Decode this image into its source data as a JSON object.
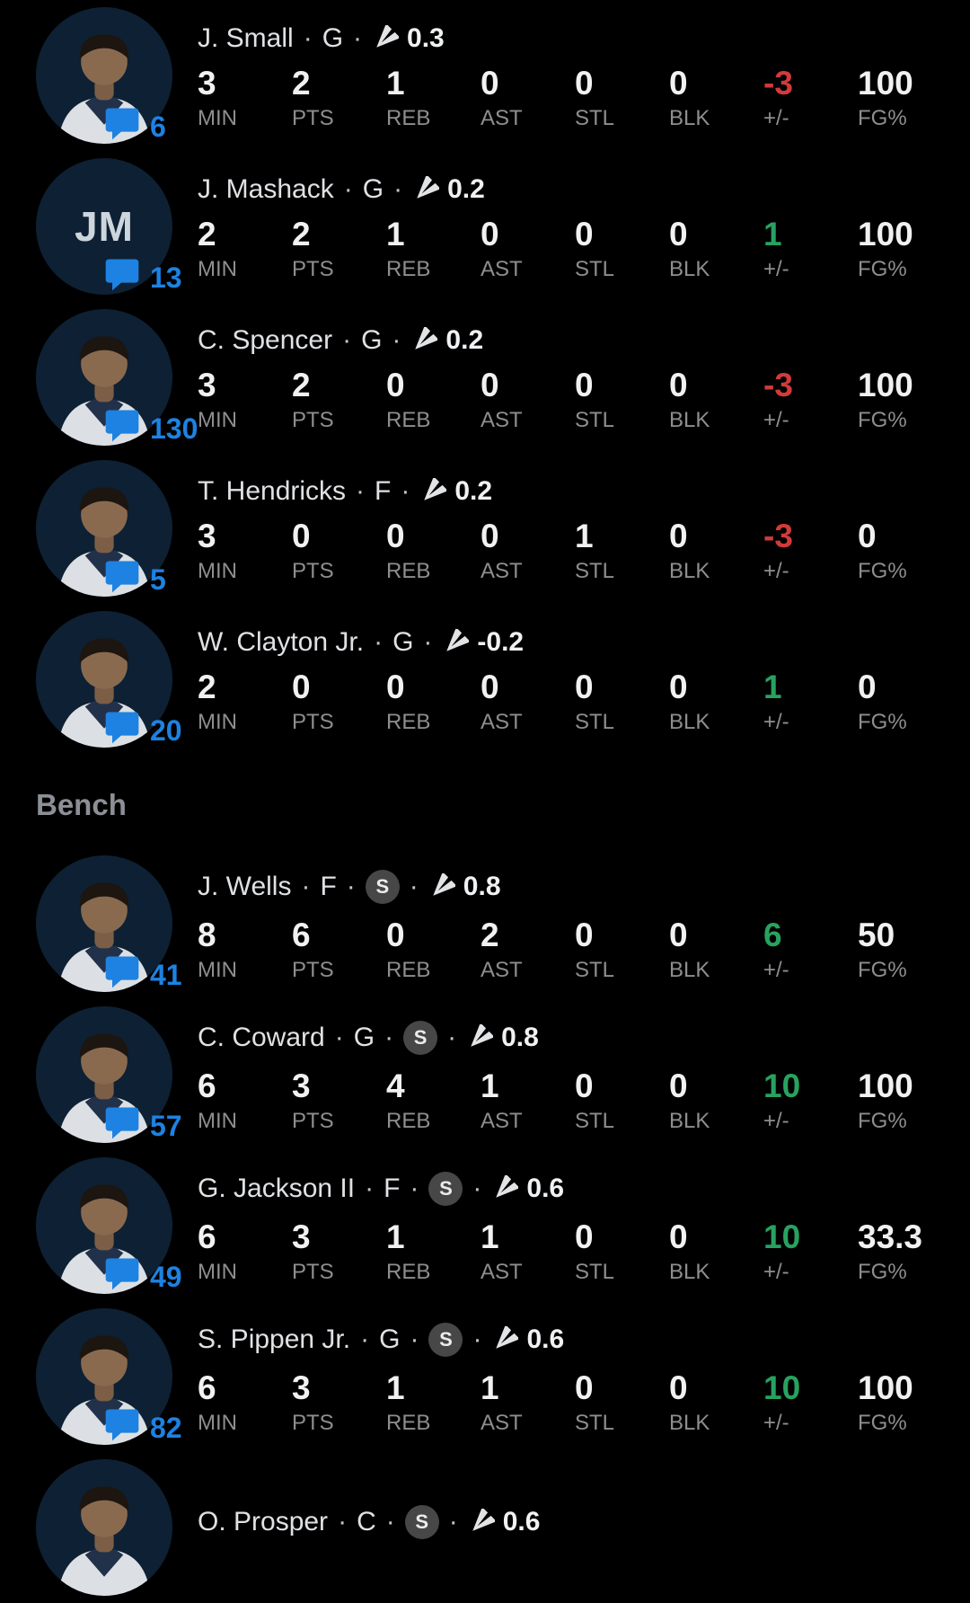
{
  "stat_labels": [
    "MIN",
    "PTS",
    "REB",
    "AST",
    "STL",
    "BLK",
    "+/-",
    "FG%"
  ],
  "colors": {
    "accent_blue": "#1d82e2",
    "positive_green": "#27a35f",
    "negative_red": "#d33a3a",
    "background": "#000000"
  },
  "icons": {
    "comments": "comment-bubble-icon",
    "fantasy_points": "paper-plane-icon"
  },
  "sections": [
    {
      "header": null,
      "players": [
        {
          "name": "J. Small",
          "position": "G",
          "squad_badge": null,
          "fantasy_points": "0.3",
          "comment_count": "6",
          "avatar": {
            "type": "photo"
          },
          "values": [
            "3",
            "2",
            "1",
            "0",
            "0",
            "0",
            "-3",
            "100"
          ]
        },
        {
          "name": "J. Mashack",
          "position": "G",
          "squad_badge": null,
          "fantasy_points": "0.2",
          "comment_count": "13",
          "avatar": {
            "type": "initials",
            "initials": "JM"
          },
          "values": [
            "2",
            "2",
            "1",
            "0",
            "0",
            "0",
            "1",
            "100"
          ]
        },
        {
          "name": "C. Spencer",
          "position": "G",
          "squad_badge": null,
          "fantasy_points": "0.2",
          "comment_count": "130",
          "avatar": {
            "type": "photo"
          },
          "values": [
            "3",
            "2",
            "0",
            "0",
            "0",
            "0",
            "-3",
            "100"
          ]
        },
        {
          "name": "T. Hendricks",
          "position": "F",
          "squad_badge": null,
          "fantasy_points": "0.2",
          "comment_count": "5",
          "avatar": {
            "type": "photo"
          },
          "values": [
            "3",
            "0",
            "0",
            "0",
            "1",
            "0",
            "-3",
            "0"
          ]
        },
        {
          "name": "W. Clayton Jr.",
          "position": "G",
          "squad_badge": null,
          "fantasy_points": "-0.2",
          "comment_count": "20",
          "avatar": {
            "type": "photo"
          },
          "values": [
            "2",
            "0",
            "0",
            "0",
            "0",
            "0",
            "1",
            "0"
          ]
        }
      ]
    },
    {
      "header": "Bench",
      "players": [
        {
          "name": "J. Wells",
          "position": "F",
          "squad_badge": "S",
          "fantasy_points": "0.8",
          "comment_count": "41",
          "avatar": {
            "type": "photo"
          },
          "values": [
            "8",
            "6",
            "0",
            "2",
            "0",
            "0",
            "6",
            "50"
          ]
        },
        {
          "name": "C. Coward",
          "position": "G",
          "squad_badge": "S",
          "fantasy_points": "0.8",
          "comment_count": "57",
          "avatar": {
            "type": "photo"
          },
          "values": [
            "6",
            "3",
            "4",
            "1",
            "0",
            "0",
            "10",
            "100"
          ]
        },
        {
          "name": "G. Jackson II",
          "position": "F",
          "squad_badge": "S",
          "fantasy_points": "0.6",
          "comment_count": "49",
          "avatar": {
            "type": "photo"
          },
          "values": [
            "6",
            "3",
            "1",
            "1",
            "0",
            "0",
            "10",
            "33.3"
          ]
        },
        {
          "name": "S. Pippen Jr.",
          "position": "G",
          "squad_badge": "S",
          "fantasy_points": "0.6",
          "comment_count": "82",
          "avatar": {
            "type": "photo"
          },
          "values": [
            "6",
            "3",
            "1",
            "1",
            "0",
            "0",
            "10",
            "100"
          ]
        },
        {
          "name": "O. Prosper",
          "position": "C",
          "squad_badge": "S",
          "fantasy_points": "0.6",
          "comment_count": null,
          "avatar": {
            "type": "photo"
          },
          "values": null
        }
      ]
    }
  ]
}
